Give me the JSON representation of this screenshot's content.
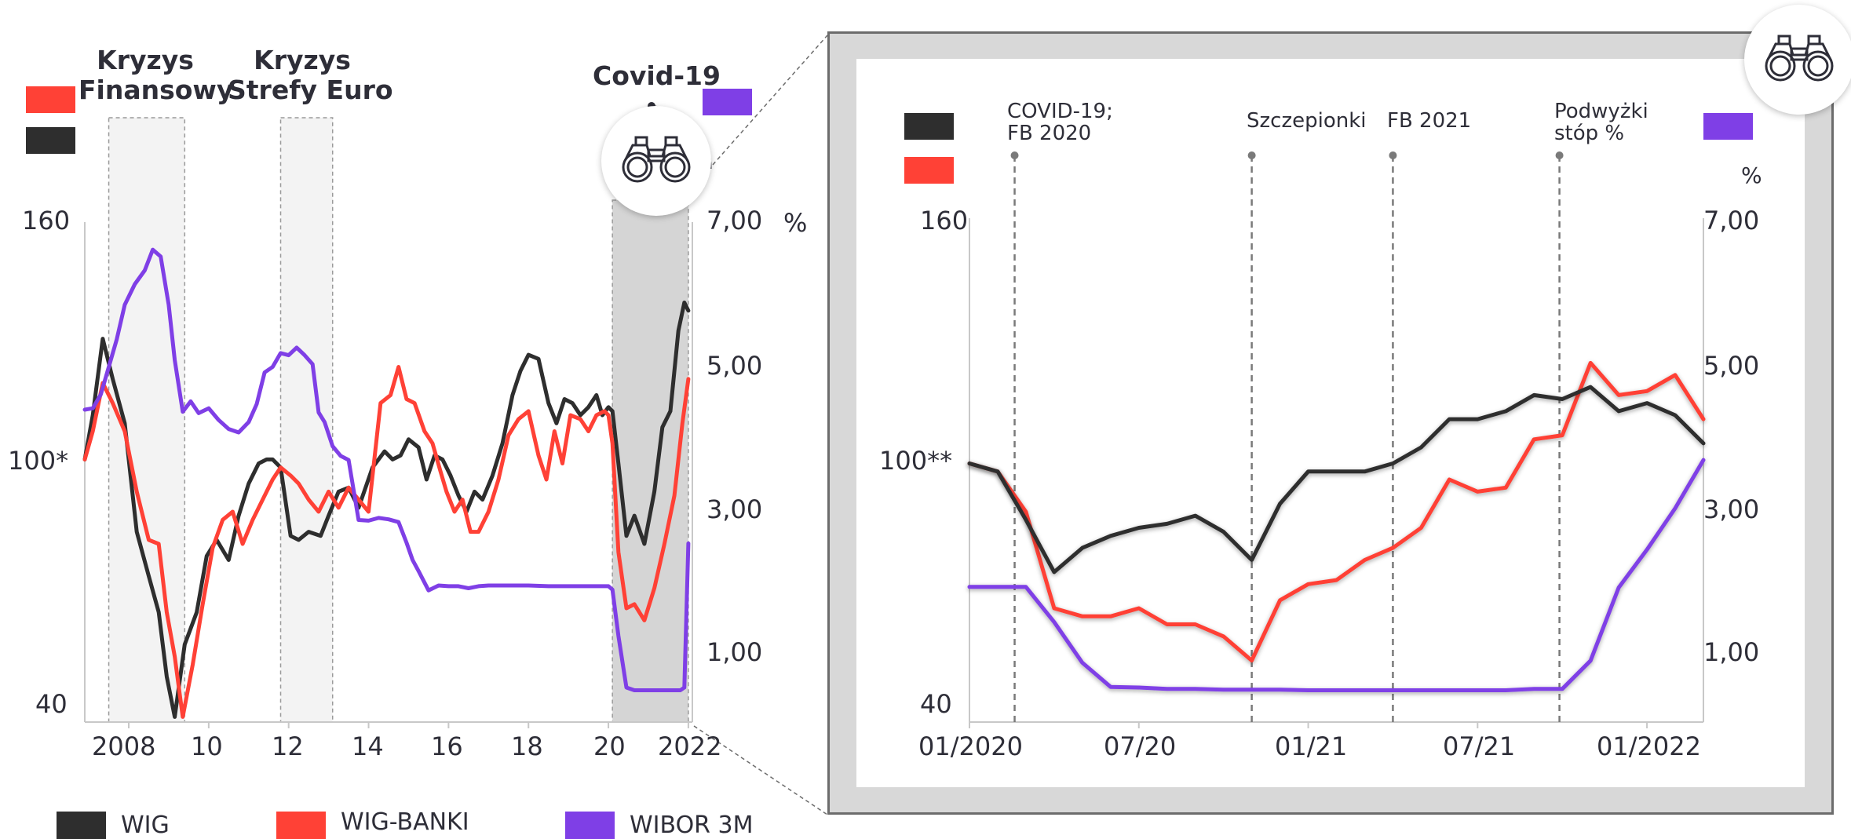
{
  "colors": {
    "wig": "#2e2e2e",
    "banki": "#ff4136",
    "wibor": "#7f3fe6",
    "shade": "#f3f3f3",
    "covid_shade": "#d5d5d5",
    "text": "#2e2e38"
  },
  "legend": [
    {
      "name": "WIG",
      "color": "#2e2e2e"
    },
    {
      "name": "WIG-BANKI",
      "color": "#ff4136"
    },
    {
      "name": "WIBOR 3M",
      "color": "#7f3fe6"
    }
  ],
  "chart_data": [
    {
      "type": "line",
      "left_ylim": [
        40,
        160
      ],
      "left_ticks": [
        "160",
        "100*",
        "40"
      ],
      "right_ylim": [
        0,
        7
      ],
      "right_ticks": [
        "7,00",
        "5,00",
        "3,00",
        "1,00"
      ],
      "right_unit": "%",
      "x_ticks": [
        "2008",
        "10",
        "12",
        "14",
        "16",
        "18",
        "20",
        "2022"
      ],
      "x_tick_values": [
        2008,
        2010,
        2012,
        2014,
        2016,
        2018,
        2020,
        2022
      ],
      "xlim": [
        2006.9,
        2022.1
      ],
      "events": [
        {
          "label_lines": [
            "Kryzys",
            "Finansowy"
          ],
          "start": 2007.5,
          "end": 2009.4
        },
        {
          "label_lines": [
            "Kryzys",
            "Strefy Euro"
          ],
          "start": 2011.8,
          "end": 2013.1
        },
        {
          "label_lines": [
            "Covid-19"
          ],
          "start": 2020.1,
          "end": 2022.0
        }
      ],
      "series": [
        {
          "name": "WIG",
          "axis": "left",
          "x": [
            2006.9,
            2007.1,
            2007.35,
            2007.6,
            2007.9,
            2008.2,
            2008.5,
            2008.75,
            2008.95,
            2009.15,
            2009.4,
            2009.7,
            2009.95,
            2010.2,
            2010.5,
            2010.75,
            2011.0,
            2011.25,
            2011.45,
            2011.6,
            2011.8,
            2012.05,
            2012.25,
            2012.5,
            2012.8,
            2013.0,
            2013.25,
            2013.5,
            2013.75,
            2014.1,
            2014.4,
            2014.6,
            2014.8,
            2015.0,
            2015.25,
            2015.45,
            2015.65,
            2015.85,
            2016.05,
            2016.25,
            2016.45,
            2016.65,
            2016.85,
            2017.1,
            2017.35,
            2017.6,
            2017.8,
            2018.0,
            2018.25,
            2018.5,
            2018.7,
            2018.9,
            2019.1,
            2019.3,
            2019.5,
            2019.7,
            2019.85,
            2020.0,
            2020.1,
            2020.25,
            2020.45,
            2020.65,
            2020.9,
            2021.15,
            2021.35,
            2021.55,
            2021.75,
            2021.9,
            2022.0
          ],
          "y": [
            101,
            112,
            131,
            121,
            110,
            83,
            72,
            63,
            47,
            37,
            55,
            63,
            77,
            81,
            76,
            87,
            95,
            100,
            101,
            101,
            99,
            82,
            81,
            83,
            82,
            87,
            93,
            94,
            89,
            99,
            103,
            101,
            102,
            106,
            104,
            96,
            102,
            101,
            97,
            92,
            88,
            93,
            91,
            97,
            105,
            117,
            123,
            127,
            126,
            115,
            110,
            116,
            115,
            112,
            114,
            117,
            112,
            114,
            113,
            100,
            82,
            87,
            80,
            93,
            109,
            113,
            133,
            140,
            138
          ]
        },
        {
          "name": "WIG-BANKI",
          "axis": "left",
          "x": [
            2006.9,
            2007.1,
            2007.35,
            2007.6,
            2007.9,
            2008.2,
            2008.5,
            2008.75,
            2008.95,
            2009.15,
            2009.35,
            2009.6,
            2009.85,
            2010.1,
            2010.35,
            2010.6,
            2010.85,
            2011.1,
            2011.35,
            2011.6,
            2011.8,
            2012.05,
            2012.25,
            2012.5,
            2012.75,
            2013.0,
            2013.25,
            2013.5,
            2013.75,
            2014.0,
            2014.3,
            2014.55,
            2014.75,
            2014.95,
            2015.15,
            2015.4,
            2015.6,
            2015.8,
            2015.95,
            2016.15,
            2016.35,
            2016.55,
            2016.75,
            2017.0,
            2017.25,
            2017.5,
            2017.75,
            2018.0,
            2018.25,
            2018.45,
            2018.65,
            2018.85,
            2019.05,
            2019.3,
            2019.5,
            2019.7,
            2019.9,
            2020.0,
            2020.1,
            2020.25,
            2020.45,
            2020.65,
            2020.9,
            2021.15,
            2021.4,
            2021.65,
            2021.85,
            2022.0
          ],
          "y": [
            101,
            108,
            120,
            115,
            108,
            93,
            81,
            80,
            63,
            52,
            37,
            50,
            65,
            79,
            86,
            88,
            80,
            86,
            91,
            96,
            99,
            97,
            95,
            91,
            88,
            93,
            89,
            94,
            91,
            88,
            115,
            117,
            124,
            116,
            115,
            108,
            105,
            98,
            93,
            88,
            91,
            83,
            83,
            88,
            96,
            107,
            111,
            113,
            102,
            96,
            108,
            100,
            112,
            111,
            108,
            112,
            113,
            112,
            105,
            78,
            64,
            65,
            61,
            69,
            80,
            92,
            110,
            121
          ]
        },
        {
          "name": "WIBOR 3M",
          "axis": "right",
          "x": [
            2006.9,
            2007.1,
            2007.3,
            2007.5,
            2007.7,
            2007.9,
            2008.15,
            2008.4,
            2008.6,
            2008.8,
            2009.0,
            2009.15,
            2009.35,
            2009.55,
            2009.75,
            2010.0,
            2010.25,
            2010.5,
            2010.75,
            2011.0,
            2011.2,
            2011.4,
            2011.6,
            2011.8,
            2012.0,
            2012.2,
            2012.4,
            2012.6,
            2012.75,
            2012.9,
            2013.1,
            2013.3,
            2013.5,
            2013.75,
            2014.0,
            2014.25,
            2014.5,
            2014.75,
            2014.95,
            2015.1,
            2015.25,
            2015.5,
            2015.75,
            2016.0,
            2016.25,
            2016.5,
            2016.75,
            2017.0,
            2017.25,
            2017.5,
            2017.75,
            2018.0,
            2018.5,
            2019.0,
            2019.5,
            2020.0,
            2020.1,
            2020.25,
            2020.45,
            2020.65,
            2020.9,
            2021.2,
            2021.5,
            2021.8,
            2021.9,
            2022.0
          ],
          "y": [
            4.28,
            4.3,
            4.5,
            4.9,
            5.3,
            5.8,
            6.1,
            6.3,
            6.6,
            6.5,
            5.8,
            5.0,
            4.25,
            4.4,
            4.23,
            4.3,
            4.13,
            4.0,
            3.95,
            4.1,
            4.36,
            4.82,
            4.9,
            5.1,
            5.07,
            5.18,
            5.07,
            4.94,
            4.24,
            4.1,
            3.75,
            3.61,
            3.55,
            2.68,
            2.67,
            2.71,
            2.69,
            2.65,
            2.35,
            2.1,
            1.94,
            1.66,
            1.73,
            1.72,
            1.72,
            1.69,
            1.72,
            1.73,
            1.73,
            1.73,
            1.73,
            1.73,
            1.72,
            1.72,
            1.72,
            1.72,
            1.67,
            1.0,
            0.25,
            0.21,
            0.21,
            0.21,
            0.21,
            0.21,
            0.25,
            2.34
          ]
        }
      ]
    },
    {
      "type": "line",
      "left_ylim": [
        40,
        160
      ],
      "left_ticks": [
        "160",
        "100**",
        "40"
      ],
      "right_ylim": [
        0,
        7
      ],
      "right_ticks": [
        "7,00",
        "5,00",
        "3,00",
        "1,00"
      ],
      "right_unit": "%",
      "x_ticks": [
        "01/2020",
        "07/20",
        "01/21",
        "07/21",
        "01/2022"
      ],
      "x_tick_values": [
        0,
        6,
        12,
        18,
        24
      ],
      "xlim": [
        0,
        26
      ],
      "events": [
        {
          "label_lines": [
            "COVID-19;",
            "FB 2020"
          ],
          "x": 1.6
        },
        {
          "label_lines": [
            "Szczepionki"
          ],
          "x": 10.0
        },
        {
          "label_lines": [
            "FB 2021"
          ],
          "x": 15.0
        },
        {
          "label_lines": [
            "Podwyżki",
            "stóp %"
          ],
          "x": 20.9
        }
      ],
      "series": [
        {
          "name": "WIG",
          "axis": "left",
          "x": [
            0,
            1,
            2,
            3,
            4,
            5,
            6,
            7,
            8,
            9,
            10,
            11,
            12,
            13,
            14,
            15,
            16,
            17,
            18,
            19,
            20,
            21,
            22,
            23,
            24,
            25,
            26
          ],
          "y": [
            100,
            98,
            86,
            73,
            79,
            82,
            84,
            85,
            87,
            83,
            76,
            90,
            98,
            98,
            98,
            100,
            104,
            111,
            111,
            113,
            117,
            116,
            119,
            113,
            115,
            112,
            105
          ]
        },
        {
          "name": "WIG-BANKI",
          "axis": "left",
          "x": [
            0,
            1,
            2,
            3,
            4,
            5,
            6,
            7,
            8,
            9,
            10,
            11,
            12,
            13,
            14,
            15,
            16,
            17,
            18,
            19,
            20,
            21,
            22,
            23,
            24,
            25,
            26
          ],
          "y": [
            100,
            98,
            88,
            64,
            62,
            62,
            64,
            60,
            60,
            57,
            51,
            66,
            70,
            71,
            76,
            79,
            84,
            96,
            93,
            94,
            106,
            107,
            125,
            117,
            118,
            122,
            111
          ]
        },
        {
          "name": "WIBOR 3M",
          "axis": "right",
          "x": [
            0,
            1,
            2,
            3,
            4,
            5,
            6,
            7,
            8,
            9,
            10,
            11,
            12,
            13,
            14,
            15,
            16,
            17,
            18,
            19,
            20,
            21,
            22,
            23,
            24,
            25,
            26
          ],
          "y": [
            1.71,
            1.71,
            1.71,
            1.2,
            0.61,
            0.26,
            0.25,
            0.23,
            0.23,
            0.22,
            0.22,
            0.22,
            0.21,
            0.21,
            0.21,
            0.21,
            0.21,
            0.21,
            0.21,
            0.21,
            0.23,
            0.23,
            0.64,
            1.7,
            2.25,
            2.85,
            3.55
          ]
        }
      ]
    }
  ]
}
